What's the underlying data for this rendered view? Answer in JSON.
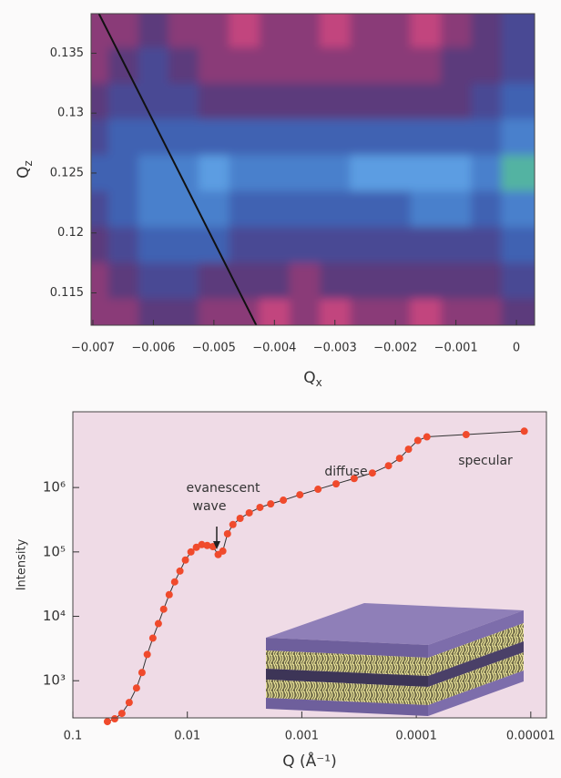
{
  "chart_data": [
    {
      "type": "contour",
      "xlabel": [
        "Q",
        "x"
      ],
      "ylabel": [
        "Q",
        "z"
      ],
      "x": [
        -0.007,
        -0.0065,
        -0.006,
        -0.0055,
        -0.005,
        -0.0045,
        -0.004,
        -0.0035,
        -0.003,
        -0.0025,
        -0.002,
        -0.0015,
        -0.001,
        -0.0005,
        0
      ],
      "y": [
        0.137,
        0.134,
        0.131,
        0.128,
        0.125,
        0.122,
        0.119,
        0.116,
        0.113
      ],
      "z": [
        [
          1,
          1,
          2,
          1,
          1,
          0,
          1,
          1,
          0,
          1,
          1,
          0,
          1,
          2,
          3
        ],
        [
          1,
          2,
          3,
          2,
          1,
          1,
          1,
          1,
          1,
          1,
          1,
          1,
          2,
          2,
          3
        ],
        [
          2,
          3,
          3,
          3,
          2,
          2,
          2,
          2,
          2,
          2,
          2,
          2,
          2,
          3,
          4
        ],
        [
          3,
          4,
          4,
          4,
          4,
          4,
          4,
          4,
          4,
          4,
          4,
          4,
          4,
          4,
          5
        ],
        [
          4,
          4,
          5,
          5,
          6,
          5,
          5,
          5,
          5,
          6,
          6,
          6,
          6,
          5,
          7
        ],
        [
          3,
          4,
          5,
          5,
          5,
          4,
          4,
          4,
          4,
          4,
          4,
          5,
          5,
          4,
          5
        ],
        [
          2,
          3,
          4,
          4,
          4,
          3,
          3,
          3,
          3,
          3,
          3,
          3,
          3,
          3,
          4
        ],
        [
          1,
          2,
          3,
          3,
          2,
          2,
          2,
          1,
          2,
          2,
          2,
          2,
          2,
          2,
          3
        ],
        [
          1,
          1,
          2,
          2,
          1,
          1,
          0,
          1,
          0,
          1,
          1,
          0,
          1,
          1,
          2
        ]
      ],
      "colors": [
        "#c2457e",
        "#8a3b78",
        "#5c3a7c",
        "#4a4a94",
        "#3f62b2",
        "#4a80cc",
        "#5c9de2",
        "#52b3a2"
      ],
      "series": [
        {
          "x": [
            -0.0069,
            -0.0043
          ],
          "values": [
            0.1383,
            0.1123
          ],
          "color": "#111111"
        }
      ],
      "xlim": [
        -0.00703,
        0.0003
      ],
      "ylim": [
        0.1123,
        0.1383
      ],
      "xticks": [
        {
          "value": -0.007,
          "label": "−0.007"
        },
        {
          "value": -0.006,
          "label": "−0.006"
        },
        {
          "value": -0.005,
          "label": "−0.005"
        },
        {
          "value": -0.004,
          "label": "−0.004"
        },
        {
          "value": -0.003,
          "label": "−0.003"
        },
        {
          "value": -0.002,
          "label": "−0.002"
        },
        {
          "value": -0.001,
          "label": "−0.001"
        },
        0
      ],
      "yticks": [
        0.115,
        0.12,
        0.125,
        0.13,
        0.135
      ]
    },
    {
      "type": "line",
      "xlabel": "Q (Å⁻¹)",
      "ylabel": "Intensity",
      "xscale": "log",
      "yscale": "log",
      "background": "#efdbe6",
      "line_color": "#333333",
      "annotations": [
        "evanescent",
        "wave",
        "diffuse",
        "specular"
      ],
      "series": [
        {
          "color": "#f04a2c",
          "x": [
            0.0499,
            0.0431,
            0.0373,
            0.0322,
            0.0278,
            0.0249,
            0.0224,
            0.02,
            0.0179,
            0.0161,
            0.0144,
            0.0129,
            0.0116,
            0.0104,
            0.0093,
            0.00834,
            0.00748,
            0.00671,
            0.00598,
            0.00538,
            0.0049,
            0.00446,
            0.004,
            0.00346,
            0.00288,
            0.00232,
            0.00187,
            0.00145,
            0.00104,
            0.000722,
            0.000502,
            0.000349,
            0.000242,
            0.000175,
            0.00014,
            0.000117,
            9.7e-05,
            8.08e-05,
            3.67e-05,
            1.14e-05
          ],
          "values": [
            232,
            256,
            311,
            459,
            771,
            1340,
            2560,
            4590,
            7700,
            12900,
            21700,
            34300,
            50500,
            74800,
            100000,
            118000,
            130000,
            126000,
            121000,
            90800,
            103000,
            191000,
            266000,
            332000,
            404000,
            491000,
            557000,
            636000,
            772000,
            940000,
            1140000,
            1380000,
            1680000,
            2180000,
            2840000,
            3930000,
            5370000,
            6120000,
            6640000,
            7500000
          ]
        }
      ],
      "xlim": [
        0.1,
        7.3e-06
      ],
      "ylim": [
        265,
        15000000
      ],
      "xticks": [
        0.1,
        0.01,
        0.001,
        0.0001,
        1e-05
      ],
      "yticks": [
        {
          "value": 1000,
          "label": "10³"
        },
        {
          "value": 10000,
          "label": "10⁴"
        },
        {
          "value": 100000,
          "label": "10⁵"
        },
        {
          "value": 1000000,
          "label": "10⁶"
        }
      ]
    }
  ]
}
